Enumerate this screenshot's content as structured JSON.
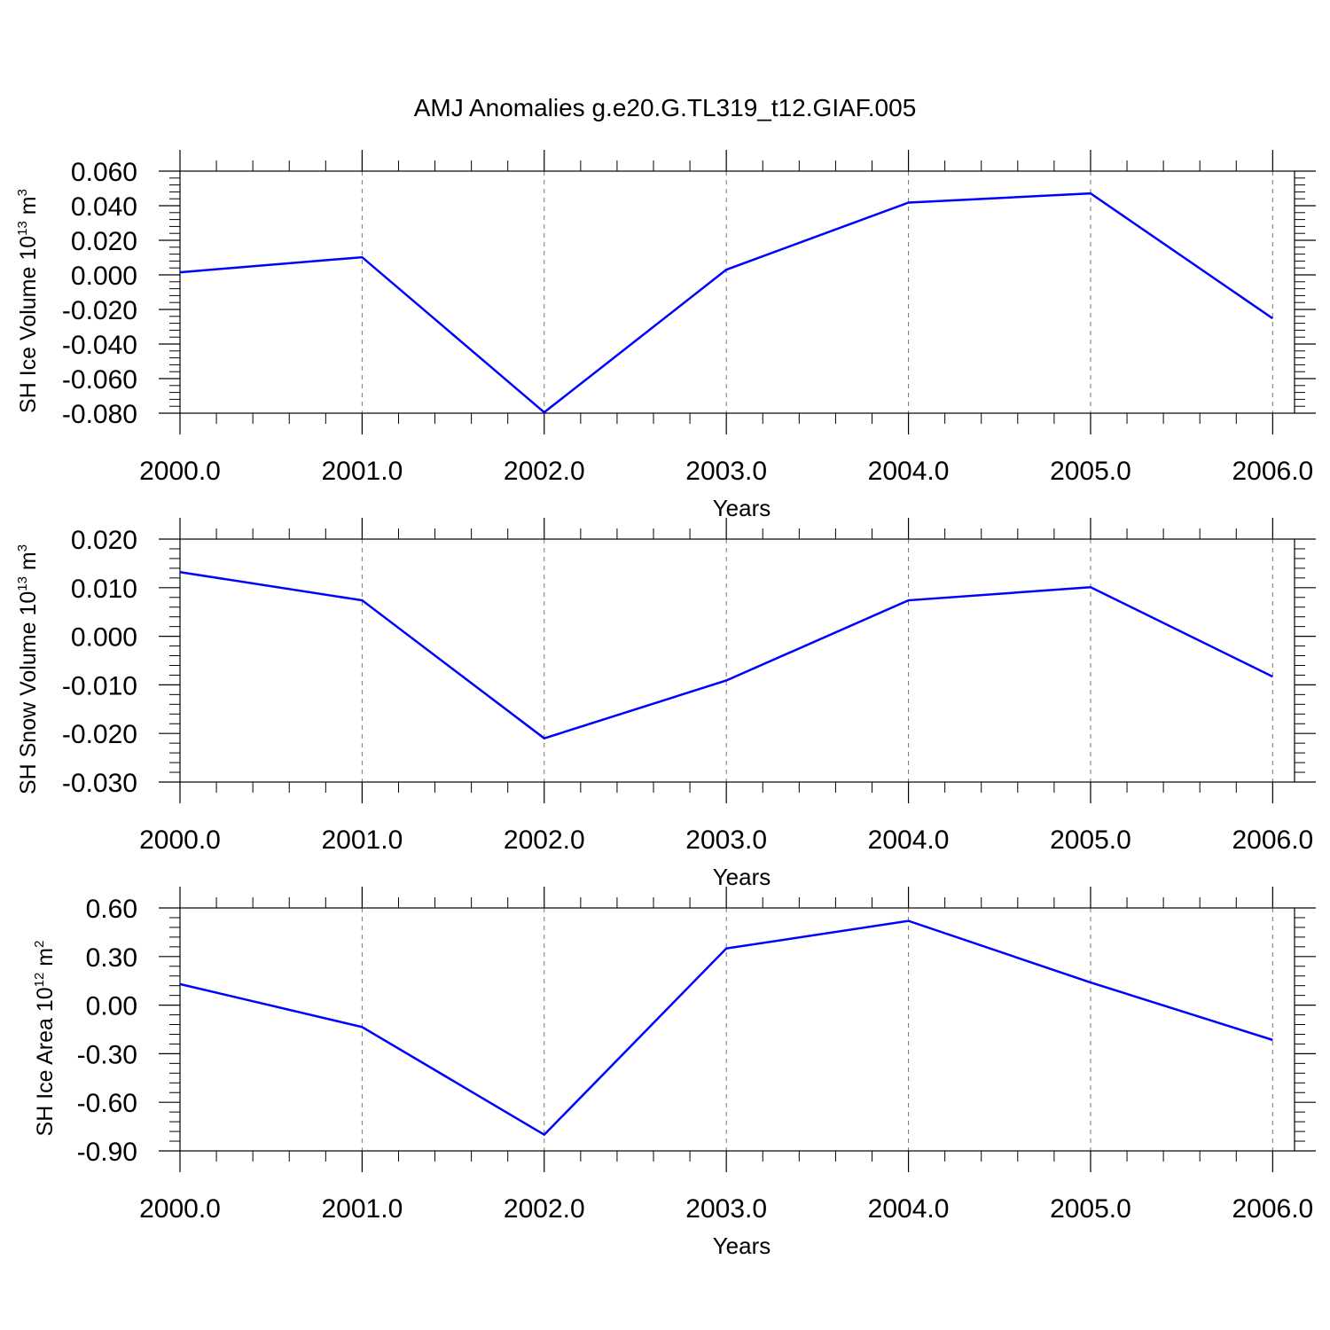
{
  "title": "AMJ Anomalies g.e20.G.TL319_t12.GIAF.005",
  "colors": {
    "line": "#0000ff",
    "grid": "#777777",
    "axis": "#000000"
  },
  "chart_data": [
    {
      "type": "line",
      "xlabel": "Years",
      "ylabel_parts": {
        "main": "SH Ice Volume 10",
        "sup1": "13",
        "unit": " m",
        "sup2": "3"
      },
      "x": [
        2000,
        2001,
        2002,
        2003,
        2004,
        2005,
        2006
      ],
      "x_tick_labels": [
        "2000.0",
        "2001.0",
        "2002.0",
        "2003.0",
        "2004.0",
        "2005.0",
        "2006.0"
      ],
      "xlim": [
        2000,
        2006.12
      ],
      "y_ticks": [
        0.06,
        0.04,
        0.02,
        0.0,
        -0.02,
        -0.04,
        -0.06,
        -0.08
      ],
      "y_tick_labels": [
        "0.060",
        "0.040",
        "0.020",
        "0.000",
        "-0.020",
        "-0.040",
        "-0.060",
        "-0.080"
      ],
      "ylim": [
        -0.08,
        0.06
      ],
      "series": [
        {
          "values": [
            0.0015,
            0.0102,
            -0.0795,
            0.003,
            0.0418,
            0.0471,
            -0.0252
          ]
        }
      ]
    },
    {
      "type": "line",
      "xlabel": "Years",
      "ylabel_parts": {
        "main": "SH Snow Volume 10",
        "sup1": "13",
        "unit": " m",
        "sup2": "3"
      },
      "x": [
        2000,
        2001,
        2002,
        2003,
        2004,
        2005,
        2006
      ],
      "x_tick_labels": [
        "2000.0",
        "2001.0",
        "2002.0",
        "2003.0",
        "2004.0",
        "2005.0",
        "2006.0"
      ],
      "xlim": [
        2000,
        2006.12
      ],
      "y_ticks": [
        0.02,
        0.01,
        0.0,
        -0.01,
        -0.02,
        -0.03
      ],
      "y_tick_labels": [
        "0.020",
        "0.010",
        "0.000",
        "-0.010",
        "-0.020",
        "-0.030"
      ],
      "ylim": [
        -0.03,
        0.02
      ],
      "series": [
        {
          "values": [
            0.0132,
            0.0074,
            -0.021,
            -0.0091,
            0.0074,
            0.0101,
            -0.0083
          ]
        }
      ]
    },
    {
      "type": "line",
      "xlabel": "Years",
      "ylabel_parts": {
        "main": "SH Ice Area 10",
        "sup1": "12",
        "unit": " m",
        "sup2": "2"
      },
      "x": [
        2000,
        2001,
        2002,
        2003,
        2004,
        2005,
        2006
      ],
      "x_tick_labels": [
        "2000.0",
        "2001.0",
        "2002.0",
        "2003.0",
        "2004.0",
        "2005.0",
        "2006.0"
      ],
      "xlim": [
        2000,
        2006.12
      ],
      "y_ticks": [
        0.6,
        0.3,
        0.0,
        -0.3,
        -0.6,
        -0.9
      ],
      "y_tick_labels": [
        "0.60",
        "0.30",
        "0.00",
        "-0.30",
        "-0.60",
        "-0.90"
      ],
      "ylim": [
        -0.9,
        0.6
      ],
      "series": [
        {
          "values": [
            0.13,
            -0.135,
            -0.8,
            0.35,
            0.52,
            0.14,
            -0.215
          ]
        }
      ]
    }
  ]
}
